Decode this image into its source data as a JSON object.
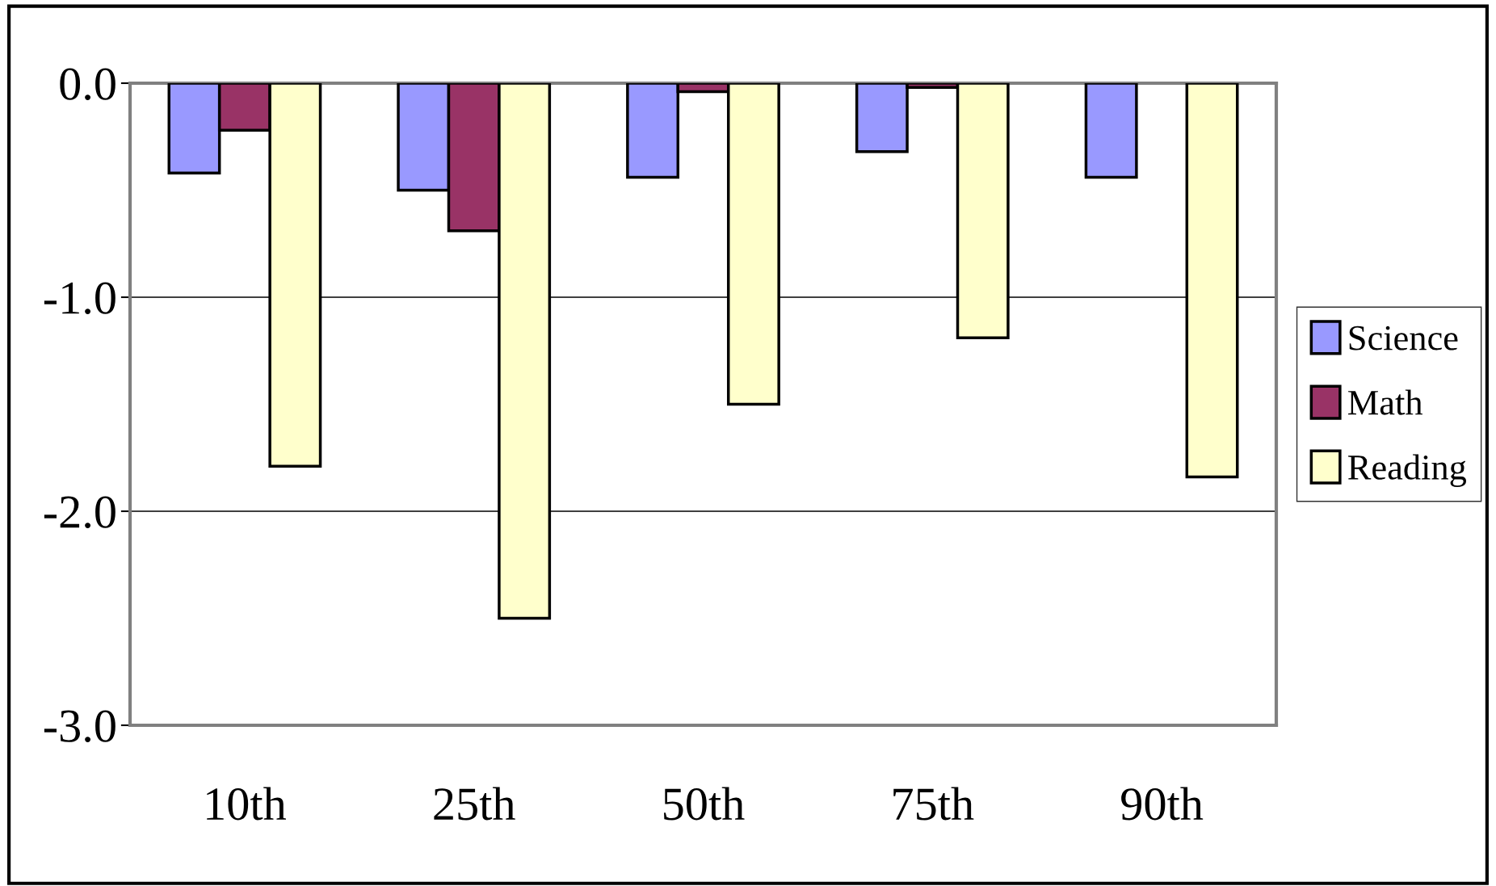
{
  "chart_data": {
    "type": "bar",
    "categories": [
      "10th",
      "25th",
      "50th",
      "75th",
      "90th"
    ],
    "series": [
      {
        "name": "Science",
        "color": "#9999ff",
        "values": [
          -0.42,
          -0.5,
          -0.44,
          -0.32,
          -0.44
        ]
      },
      {
        "name": "Math",
        "color": "#993366",
        "values": [
          -0.22,
          -0.69,
          -0.04,
          -0.02,
          null
        ]
      },
      {
        "name": "Reading",
        "color": "#ffffcc",
        "values": [
          -1.79,
          -2.5,
          -1.5,
          -1.19,
          -1.84
        ]
      }
    ],
    "ylim": [
      -3.0,
      0.0
    ],
    "yticks": [
      {
        "value": -3.0,
        "label": "-3.0"
      },
      {
        "value": -2.0,
        "label": "-2.0"
      },
      {
        "value": -1.0,
        "label": "-1.0"
      },
      {
        "value": 0.0,
        "label": "0.0"
      }
    ],
    "grid": "y",
    "legend": "right"
  }
}
